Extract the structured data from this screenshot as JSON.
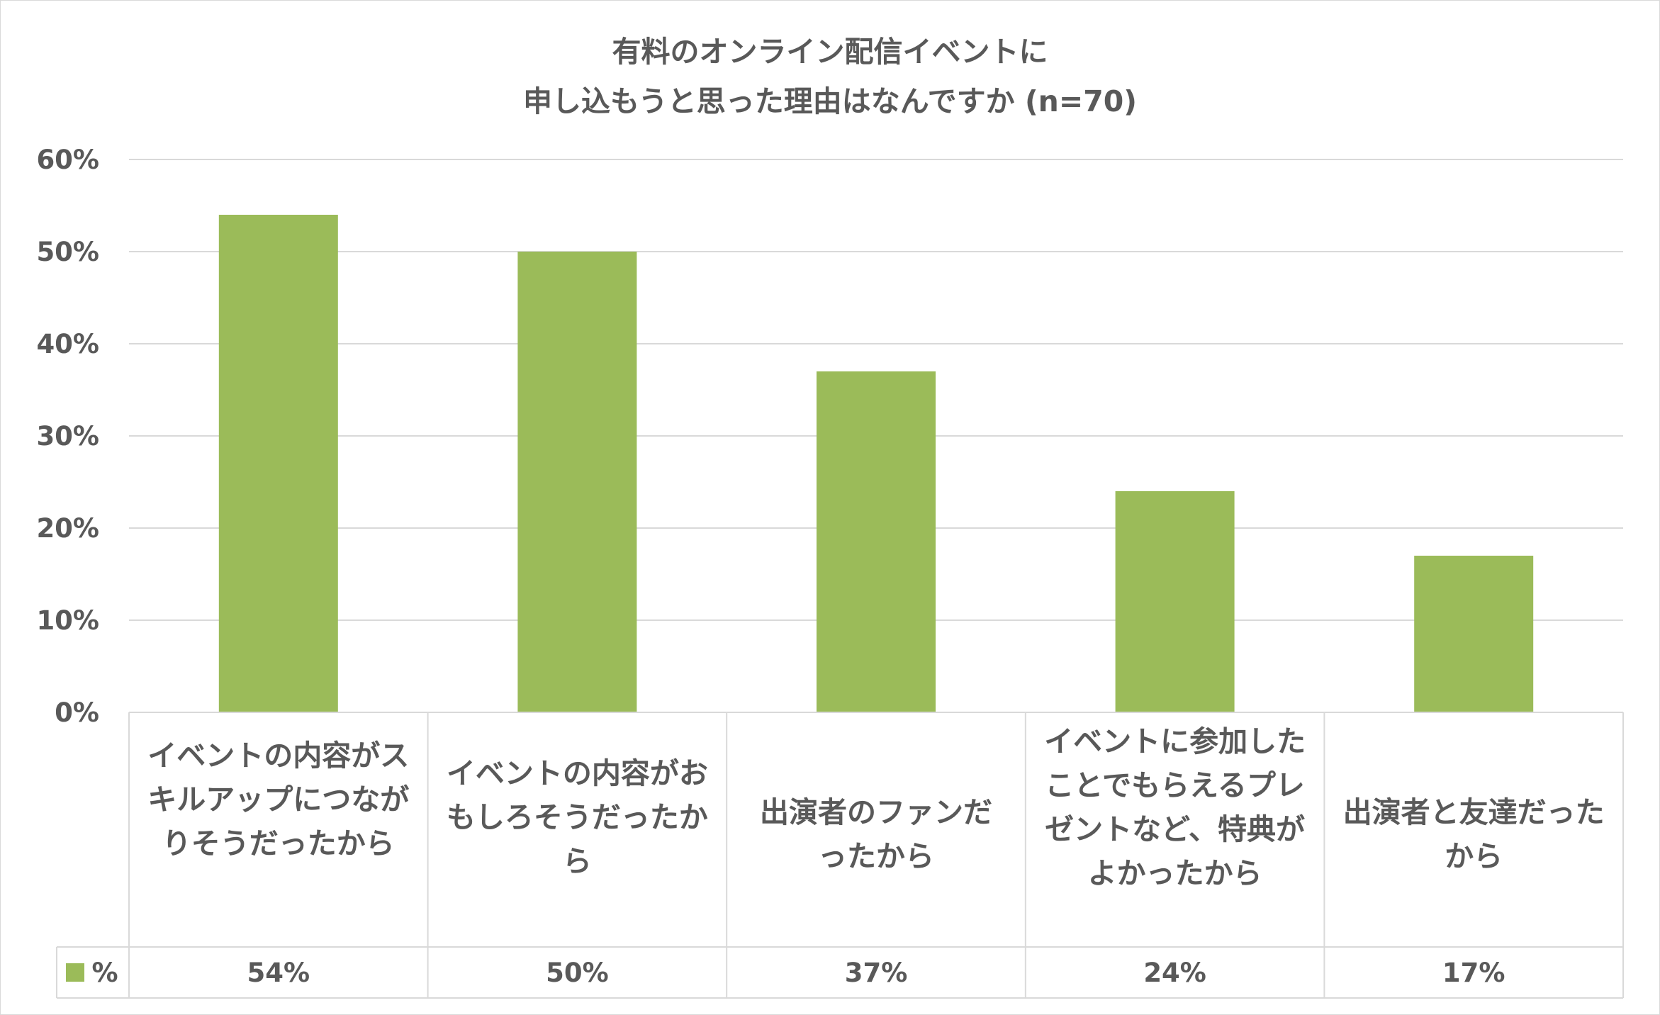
{
  "title_line1": "有料のオンライン配信イベントに",
  "title_line2": "申し込もうと思った理由はなんですか (n=70)",
  "chart_data": {
    "type": "bar",
    "categories": [
      "イベントの内容がスキルアップにつながりそうだったから",
      "イベントの内容がおもしろそうだったから",
      "出演者のファンだったから",
      "イベントに参加したことでもらえるプレゼントなど、特典がよかったから",
      "出演者と友達だったから"
    ],
    "series": [
      {
        "name": "%",
        "values": [
          54,
          50,
          37,
          24,
          17
        ],
        "color": "#9bbb59"
      }
    ],
    "value_labels": [
      "54%",
      "50%",
      "37%",
      "24%",
      "17%"
    ],
    "ylim": [
      0,
      60
    ],
    "yticks": [
      "0%",
      "10%",
      "20%",
      "30%",
      "40%",
      "50%",
      "60%"
    ],
    "grid": true,
    "legend": "data-table"
  },
  "colors": {
    "bar": "#9bbb59",
    "grid": "#d9d9d9",
    "text": "#595959"
  }
}
